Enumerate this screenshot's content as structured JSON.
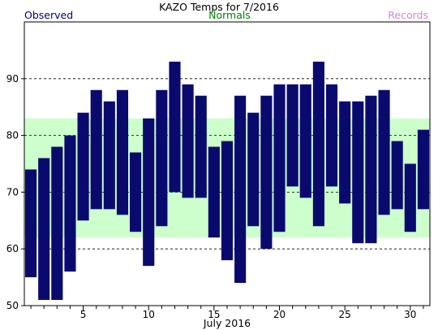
{
  "chart_data": {
    "type": "bar",
    "title": "KAZO Temps for 7/2016",
    "xlabel": "July 2016",
    "ylabel": "",
    "legend": [
      {
        "label": "Observed",
        "color": "#000080"
      },
      {
        "label": "Normals",
        "color": "#008000"
      },
      {
        "label": "Records",
        "color": "#cc88cc"
      }
    ],
    "x_range": [
      0.5,
      31.5
    ],
    "x_ticks": [
      5,
      10,
      15,
      20,
      25,
      30
    ],
    "ylim": [
      50,
      100
    ],
    "y_ticks": [
      50,
      60,
      70,
      80,
      90
    ],
    "y_gridlines": [
      60,
      70,
      80,
      90
    ],
    "grid": "horizontal dashed",
    "normals_band": {
      "low": 62,
      "high": 83,
      "color": "#ccffcc"
    },
    "series": [
      {
        "name": "Observed",
        "color": "#0a0a6e",
        "days": [
          1,
          2,
          3,
          4,
          5,
          6,
          7,
          8,
          9,
          10,
          11,
          12,
          13,
          14,
          15,
          16,
          17,
          18,
          19,
          20,
          21,
          22,
          23,
          24,
          25,
          26,
          27,
          28,
          29,
          30,
          31
        ],
        "low": [
          55,
          51,
          51,
          56,
          65,
          67,
          67,
          66,
          63,
          57,
          64,
          70,
          69,
          69,
          62,
          58,
          54,
          64,
          60,
          63,
          71,
          69,
          64,
          71,
          68,
          61,
          61,
          66,
          67,
          63,
          67
        ],
        "high": [
          74,
          76,
          78,
          80,
          84,
          88,
          86,
          88,
          77,
          83,
          88,
          93,
          89,
          87,
          78,
          79,
          87,
          84,
          87,
          89,
          89,
          89,
          93,
          89,
          86,
          86,
          87,
          88,
          79,
          75,
          81
        ]
      }
    ]
  }
}
